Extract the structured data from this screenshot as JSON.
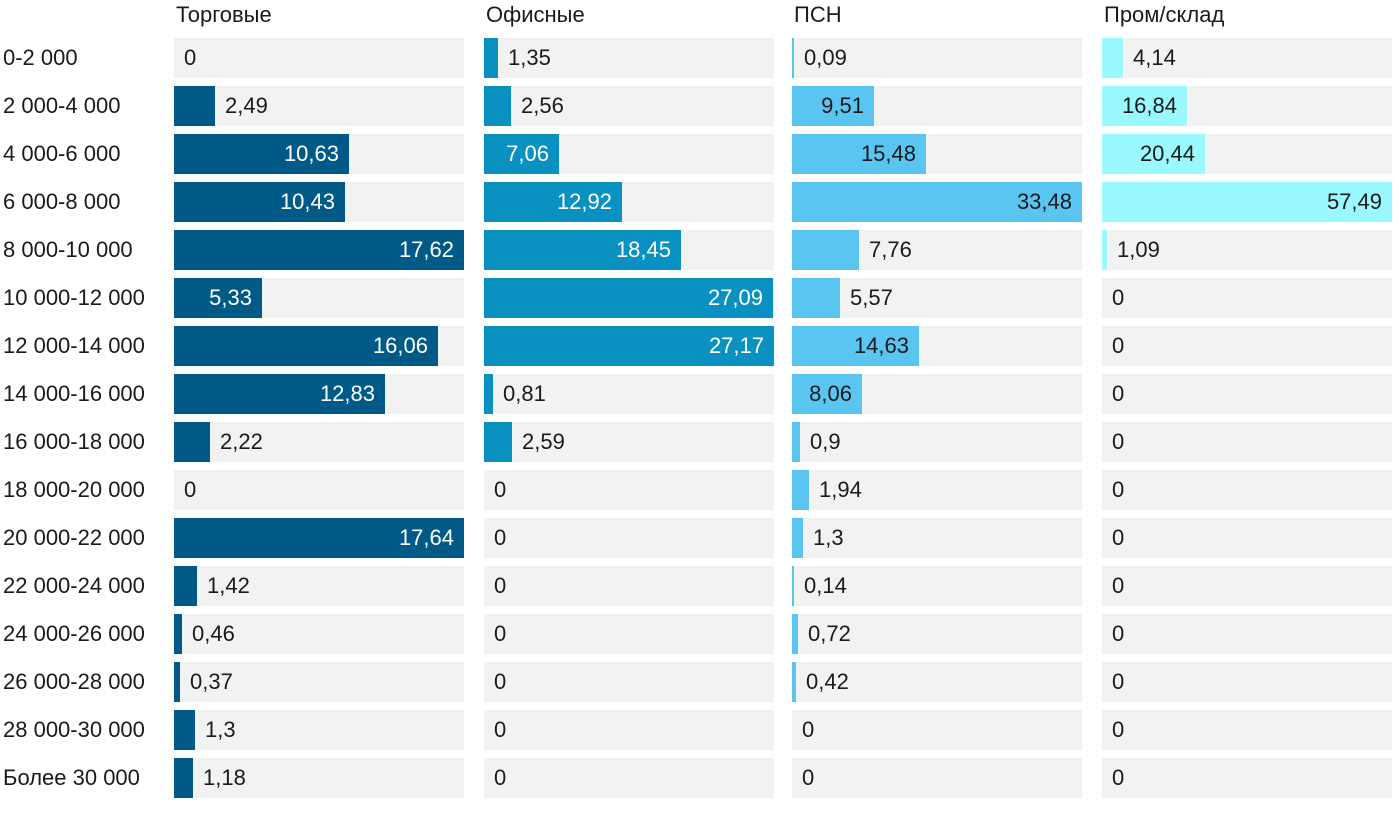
{
  "chart_data": {
    "type": "bar",
    "orientation": "horizontal",
    "layout": "small-multiples",
    "categories": [
      "0-2 000",
      "2 000-4 000",
      "4 000-6 000",
      "6 000-8 000",
      "8 000-10 000",
      "10 000-12 000",
      "12 000-14 000",
      "14 000-16 000",
      "16 000-18 000",
      "18 000-20 000",
      "20 000-22 000",
      "22 000-24 000",
      "24 000-26 000",
      "26 000-28 000",
      "28 000-30 000",
      "Более 30 000"
    ],
    "series": [
      {
        "name": "Торговые",
        "color": "#005a87",
        "max": 17.64,
        "values": [
          0,
          2.49,
          10.63,
          10.43,
          17.62,
          5.33,
          16.06,
          12.83,
          2.22,
          0,
          17.64,
          1.42,
          0.46,
          0.37,
          1.3,
          1.18
        ],
        "labels": [
          "0",
          "2,49",
          "10,63",
          "10,43",
          "17,62",
          "5,33",
          "16,06",
          "12,83",
          "2,22",
          "0",
          "17,64",
          "1,42",
          "0,46",
          "0,37",
          "1,3",
          "1,18"
        ]
      },
      {
        "name": "Офисные",
        "color": "#0891c1",
        "max": 27.17,
        "values": [
          1.35,
          2.56,
          7.06,
          12.92,
          18.45,
          27.09,
          27.17,
          0.81,
          2.59,
          0,
          0,
          0,
          0,
          0,
          0,
          0
        ],
        "labels": [
          "1,35",
          "2,56",
          "7,06",
          "12,92",
          "18,45",
          "27,09",
          "27,17",
          "0,81",
          "2,59",
          "0",
          "0",
          "0",
          "0",
          "0",
          "0",
          "0"
        ]
      },
      {
        "name": "ПСН",
        "color": "#5bc5f2",
        "max": 33.48,
        "values": [
          0.09,
          9.51,
          15.48,
          33.48,
          7.76,
          5.57,
          14.63,
          8.06,
          0.9,
          1.94,
          1.3,
          0.14,
          0.72,
          0.42,
          0,
          0
        ],
        "labels": [
          "0,09",
          "9,51",
          "15,48",
          "33,48",
          "7,76",
          "5,57",
          "14,63",
          "8,06",
          "0,9",
          "1,94",
          "1,3",
          "0,14",
          "0,72",
          "0,42",
          "0",
          "0"
        ]
      },
      {
        "name": "Пром/склад",
        "color": "#99f9ff",
        "max": 57.49,
        "values": [
          4.14,
          16.84,
          20.44,
          57.49,
          1.09,
          0,
          0,
          0,
          0,
          0,
          0,
          0,
          0,
          0,
          0,
          0
        ],
        "labels": [
          "4,14",
          "16,84",
          "20,44",
          "57,49",
          "1,09",
          "0",
          "0",
          "0",
          "0",
          "0",
          "0",
          "0",
          "0",
          "0",
          "0",
          "0"
        ]
      }
    ],
    "track_color": "#f2f2f2",
    "legend": "none",
    "grid": false
  }
}
